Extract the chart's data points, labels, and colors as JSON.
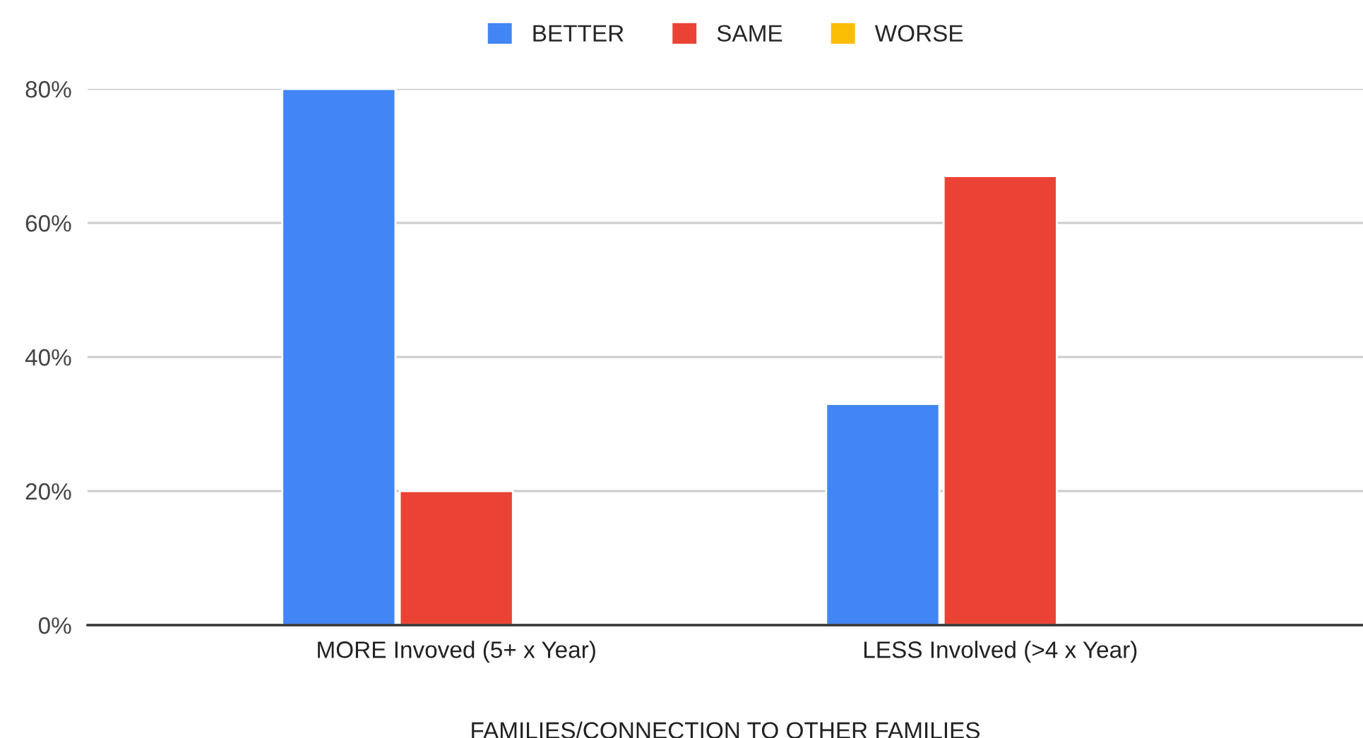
{
  "chart_data": {
    "type": "bar",
    "xlabel": "FAMILIES/CONNECTION TO OTHER FAMILIES",
    "categories": [
      "MORE Invoved (5+ x Year)",
      "LESS Involved (>4 x Year)"
    ],
    "series": [
      {
        "name": "BETTER",
        "color": "#4285f4",
        "values": [
          80,
          33
        ]
      },
      {
        "name": "SAME",
        "color": "#ea4335",
        "values": [
          20,
          67
        ]
      },
      {
        "name": "WORSE",
        "color": "#fbbc04",
        "values": [
          null,
          null
        ]
      }
    ],
    "ylim": [
      0,
      80
    ],
    "yticks": [
      {
        "value": 0,
        "label": "0%"
      },
      {
        "value": 20,
        "label": "20%"
      },
      {
        "value": 40,
        "label": "40%"
      },
      {
        "value": 60,
        "label": "60%"
      },
      {
        "value": 80,
        "label": "80%"
      }
    ],
    "grid": "y",
    "legend": "top"
  }
}
